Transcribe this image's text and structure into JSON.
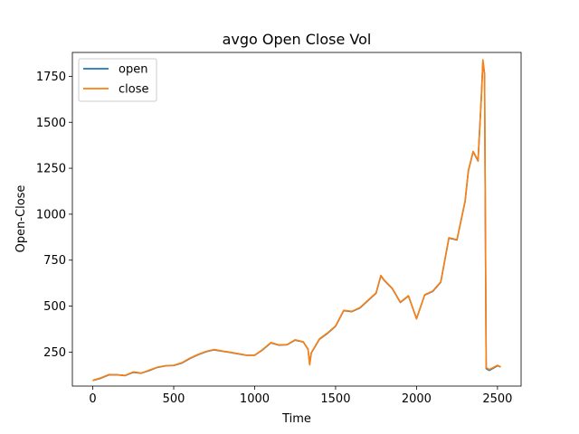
{
  "chart_data": {
    "type": "line",
    "title": "avgo Open Close Vol",
    "xlabel": "Time",
    "ylabel": "Open-Close",
    "xlim": [
      -126,
      2646
    ],
    "ylim": [
      65,
      1880
    ],
    "xticks": [
      0,
      500,
      1000,
      1500,
      2000,
      2500
    ],
    "yticks": [
      250,
      500,
      750,
      1000,
      1250,
      1500,
      1750
    ],
    "legend_position": "upper-left",
    "grid": false,
    "series": [
      {
        "name": "open",
        "color": "#1f77b4",
        "x": [
          0,
          50,
          100,
          150,
          200,
          250,
          300,
          350,
          400,
          450,
          500,
          550,
          600,
          650,
          700,
          750,
          800,
          850,
          900,
          950,
          1000,
          1050,
          1100,
          1150,
          1200,
          1250,
          1300,
          1330,
          1340,
          1350,
          1400,
          1450,
          1500,
          1550,
          1600,
          1650,
          1700,
          1750,
          1780,
          1800,
          1850,
          1900,
          1950,
          2000,
          2050,
          2100,
          2150,
          2200,
          2250,
          2300,
          2320,
          2350,
          2380,
          2400,
          2410,
          2420,
          2430,
          2450,
          2500,
          2520
        ],
        "y": [
          95,
          108,
          126,
          126,
          122,
          140,
          135,
          150,
          167,
          175,
          177,
          190,
          215,
          235,
          252,
          262,
          255,
          248,
          240,
          232,
          232,
          262,
          300,
          288,
          290,
          315,
          305,
          265,
          185,
          245,
          320,
          352,
          390,
          475,
          470,
          490,
          530,
          570,
          665,
          640,
          595,
          520,
          555,
          432,
          560,
          580,
          630,
          870,
          860,
          1070,
          1235,
          1340,
          1290,
          1630,
          1830,
          1760,
          160,
          150,
          175,
          170
        ]
      },
      {
        "name": "close",
        "color": "#ff7f0e",
        "x": [
          0,
          50,
          100,
          150,
          200,
          250,
          300,
          350,
          400,
          450,
          500,
          550,
          600,
          650,
          700,
          750,
          800,
          850,
          900,
          950,
          1000,
          1050,
          1100,
          1150,
          1200,
          1250,
          1300,
          1330,
          1340,
          1350,
          1400,
          1450,
          1500,
          1550,
          1600,
          1650,
          1700,
          1750,
          1780,
          1800,
          1850,
          1900,
          1950,
          2000,
          2050,
          2100,
          2150,
          2200,
          2250,
          2300,
          2320,
          2350,
          2380,
          2400,
          2410,
          2420,
          2430,
          2450,
          2500,
          2520
        ],
        "y": [
          96,
          110,
          128,
          127,
          123,
          142,
          136,
          152,
          168,
          176,
          178,
          192,
          217,
          237,
          254,
          264,
          256,
          249,
          241,
          233,
          233,
          264,
          302,
          289,
          291,
          317,
          306,
          266,
          180,
          247,
          322,
          354,
          392,
          477,
          472,
          492,
          532,
          572,
          667,
          642,
          597,
          522,
          557,
          430,
          562,
          582,
          632,
          872,
          862,
          1072,
          1238,
          1342,
          1292,
          1632,
          1840,
          1765,
          165,
          155,
          178,
          168
        ]
      }
    ]
  }
}
